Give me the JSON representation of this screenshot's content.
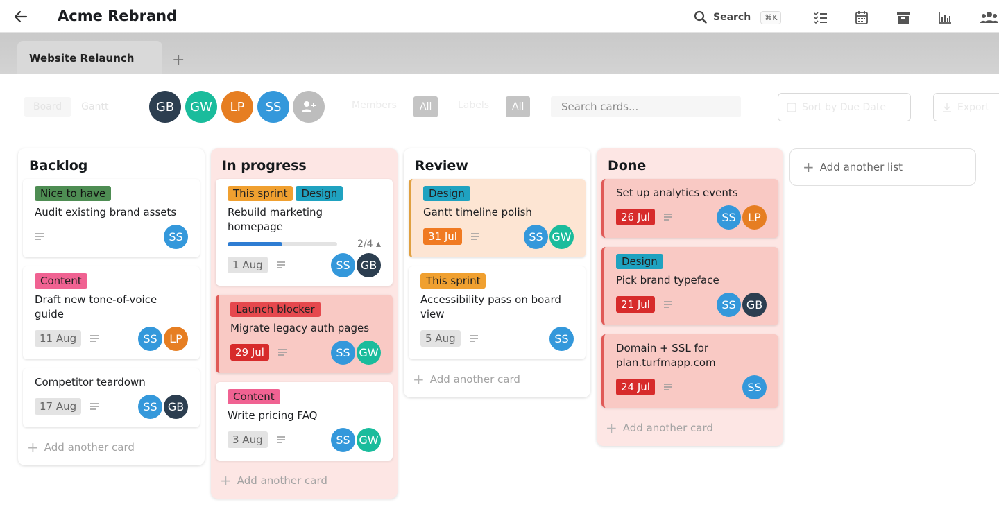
{
  "header": {
    "title": "Acme Rebrand",
    "search_label": "Search",
    "search_shortcut": "⌘K"
  },
  "tabs": [
    {
      "label": "Website Relaunch"
    }
  ],
  "toolbar": {
    "view_board": "Board",
    "view_gantt": "Gantt",
    "members_label": "Members",
    "members_value": "All",
    "labels_label": "Labels",
    "labels_value": "All",
    "search_placeholder": "Search cards...",
    "sort_label": "Sort by Due Date",
    "export_label": "Export"
  },
  "members": [
    {
      "initials": "GB",
      "color": "#2c3e50"
    },
    {
      "initials": "GW",
      "color": "#1abc9c"
    },
    {
      "initials": "LP",
      "color": "#e67e22"
    },
    {
      "initials": "SS",
      "color": "#3498db"
    }
  ],
  "lists": [
    {
      "title": "Backlog",
      "add_card": "Add another card"
    },
    {
      "title": "In progress",
      "add_card": "Add another card"
    },
    {
      "title": "Review",
      "add_card": "Add another card"
    },
    {
      "title": "Done",
      "add_card": "Add another card"
    }
  ],
  "cards": {
    "b1": {
      "label": "Nice to have",
      "label_color": "#4e8d53",
      "title": "Audit existing brand assets",
      "members": [
        "SS"
      ]
    },
    "b2": {
      "label": "Content",
      "label_color": "#f06292",
      "title": "Draft new tone-of-voice guide",
      "due": "11 Aug",
      "members": [
        "SS",
        "LP"
      ]
    },
    "b3": {
      "title": "Competitor teardown",
      "due": "17 Aug",
      "members": [
        "SS",
        "GB"
      ]
    },
    "p1": {
      "labels": [
        "This sprint",
        "Design"
      ],
      "title": "Rebuild marketing homepage",
      "progress_text": "2/4",
      "progress_value": 0.5,
      "due": "1 Aug",
      "members": [
        "SS",
        "GB"
      ]
    },
    "p2": {
      "label": "Launch blocker",
      "label_color": "#e5484d",
      "title": "Migrate legacy auth pages",
      "due": "29 Jul",
      "members": [
        "SS",
        "GW"
      ]
    },
    "p3": {
      "label": "Content",
      "title": "Write pricing FAQ",
      "due": "3 Aug",
      "members": [
        "SS",
        "GW"
      ]
    },
    "r1": {
      "label": "Design",
      "title": "Gantt timeline polish",
      "due": "31 Jul",
      "members": [
        "SS",
        "GW"
      ]
    },
    "r2": {
      "label": "This sprint",
      "title": "Accessibility pass on board view",
      "due": "5 Aug",
      "members": [
        "SS"
      ]
    },
    "d1": {
      "title": "Set up analytics events",
      "due": "26 Jul",
      "members": [
        "SS",
        "LP"
      ]
    },
    "d2": {
      "label": "Design",
      "title": "Pick brand typeface",
      "due": "21 Jul",
      "members": [
        "SS",
        "GB"
      ]
    },
    "d3": {
      "title": "Domain + SSL for plan.turfmapp.com",
      "due": "24 Jul",
      "members": [
        "SS"
      ]
    }
  },
  "add_list": "Add another list",
  "colors": {
    "SS": "#3498db",
    "GB": "#2c3e50",
    "GW": "#1abc9c",
    "LP": "#e67e22",
    "sprint": "#f0a030",
    "design": "#1fa2c0"
  }
}
